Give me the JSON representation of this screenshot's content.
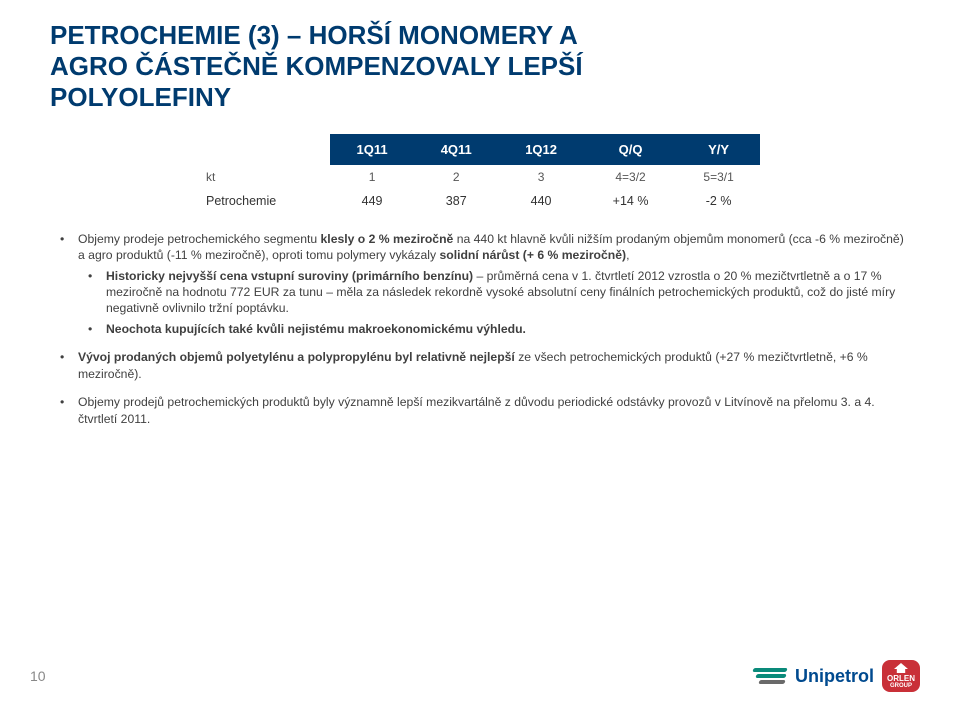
{
  "title": {
    "line1": "PETROCHEMIE (3) – HORŠÍ MONOMERY A",
    "line2": "AGRO ČÁSTEČNĚ KOMPENZOVALY LEPŠÍ",
    "line3": "POLYOLEFINY"
  },
  "table": {
    "headers": [
      "1Q11",
      "4Q11",
      "1Q12",
      "Q/Q",
      "Y/Y"
    ],
    "rows": [
      {
        "label": "kt",
        "cells": [
          "1",
          "2",
          "3",
          "4=3/2",
          "5=3/1"
        ],
        "class": "small"
      },
      {
        "label": "Petrochemie",
        "cells": [
          "449",
          "387",
          "440",
          "+14 %",
          "-2 %"
        ],
        "class": "data"
      }
    ]
  },
  "bullets": {
    "b1_pre": "Objemy prodeje petrochemického segmentu ",
    "b1_hl1": "klesly o 2 % meziročně",
    "b1_mid": " na 440 kt hlavně kvůli nižším prodaným objemům monomerů (cca -6 % meziročně) a agro produktů (-11 % meziročně), oproti tomu polymery vykázaly ",
    "b1_hl2": "solidní nárůst (+ 6 % meziročně)",
    "b1_sub1_pre": "Historicky nejvyšší cena vstupní suroviny (primárního benzínu) ",
    "b1_sub1_hl": "",
    "b1_sub1_mid": "– průměrná cena v 1. čtvrtletí 2012 vzrostla o 20 % mezičtvrtletně a o 17 % meziročně na hodnotu 772 EUR za tunu – měla za následek rekordně vysoké absolutní ceny finálních petrochemických produktů, což do jisté míry negativně ovlivnilo tržní poptávku.",
    "b1_sub2": "Neochota kupujících také kvůli nejistému makroekonomickému výhledu.",
    "b2_pre": "Vývoj prodaných objemů polyetylénu a polypropylénu byl relativně nejlepší",
    "b2_rest": " ze všech petrochemických produktů (+27 % mezičtvrtletně, +6 % meziročně).",
    "b3": "Objemy prodejů petrochemických produktů byly významně lepší mezikvartálně z důvodu periodické odstávky provozů v Litvínově na přelomu 3. a 4. čtvrtletí 2011."
  },
  "footer": {
    "page": "10",
    "brand": "Unipetrol",
    "group": "GROUP",
    "orlen": "ORLEN"
  },
  "colors": {
    "header_bg": "#003b6f",
    "title": "#003b6f"
  }
}
